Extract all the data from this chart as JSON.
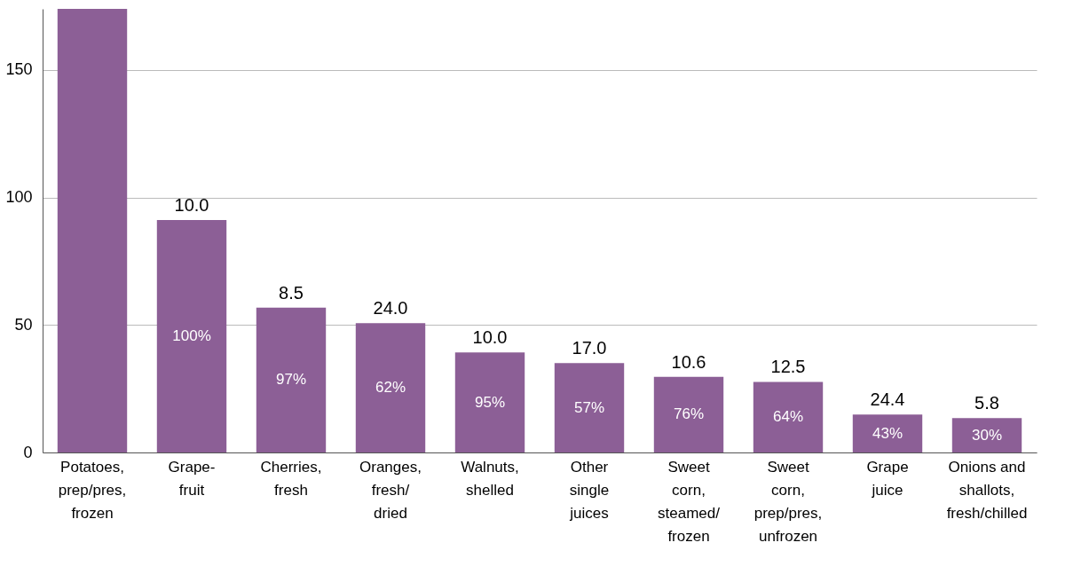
{
  "chart_data": {
    "type": "bar",
    "categories": [
      "Potatoes,\nprep/pres,\nfrozen",
      "Grape-\nfruit",
      "Cherries,\nfresh",
      "Oranges,\nfresh/\ndried",
      "Walnuts,\nshelled",
      "Other\nsingle\njuices",
      "Sweet\ncorn,\nsteamed/\nfrozen",
      "Sweet\ncorn,\nprep/pres,\nunfrozen",
      "Grape\njuice",
      "Onions and\nshallots,\nfresh/chilled"
    ],
    "values": [
      174,
      91.2,
      56.8,
      50.7,
      39.2,
      35.1,
      29.7,
      27.7,
      14.9,
      13.5
    ],
    "color": "#8c5f96",
    "ylim": [
      0,
      174
    ],
    "yticks": [
      0,
      50,
      100,
      150
    ],
    "grid": "y",
    "annotations": [
      {
        "text": "10.0",
        "x": "Grape-\nfruit",
        "y": 91.2
      },
      {
        "text": "8.5",
        "x": "Cherries,\nfresh",
        "y": 56.8
      },
      {
        "text": "24.0",
        "x": "Oranges,\nfresh/\ndried",
        "y": 50.7
      },
      {
        "text": "10.0",
        "x": "Walnuts,\nshelled",
        "y": 39.2
      },
      {
        "text": "17.0",
        "x": "Other\nsingle\njuices",
        "y": 35.1
      },
      {
        "text": "10.6",
        "x": "Sweet\ncorn,\nsteamed/\nfrozen",
        "y": 29.7
      },
      {
        "text": "12.5",
        "x": "Sweet\ncorn,\nprep/pres,\nunfrozen",
        "y": 27.7
      },
      {
        "text": "24.4",
        "x": "Grape\njuice",
        "y": 14.9
      },
      {
        "text": "5.8",
        "x": "Onions and\nshallots,\nfresh/chilled",
        "y": 13.5
      },
      "100%",
      "97%",
      "62%",
      "95%",
      "57%",
      "76%",
      "64%",
      "43%",
      "30%"
    ]
  }
}
